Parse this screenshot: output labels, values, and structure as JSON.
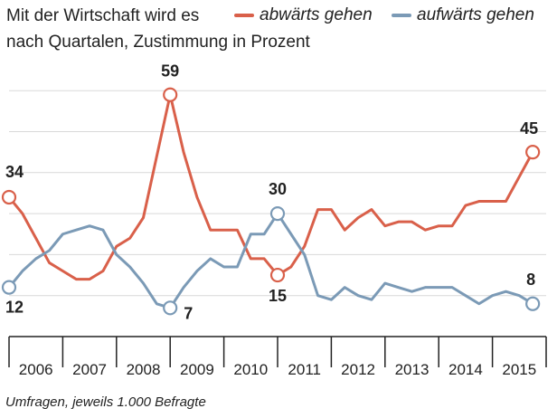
{
  "header": {
    "title_line1": "Mit der Wirtschaft wird es",
    "title_line2": "nach Quartalen, Zustimmung in Prozent"
  },
  "footer": {
    "note": "Umfragen, jeweils 1.000 Befragte"
  },
  "colors": {
    "down": "#d9604a",
    "up": "#7b9ab6",
    "grid": "#d9d9d9",
    "axis": "#222222"
  },
  "chart_data": {
    "type": "line",
    "title": "Mit der Wirtschaft wird es",
    "subtitle": "nach Quartalen, Zustimmung in Prozent",
    "xlabel": "",
    "ylabel": "",
    "ylim": [
      0,
      70
    ],
    "xlim": [
      2006.0,
      2016.0
    ],
    "x_tick_labels": [
      "2006",
      "2007",
      "2008",
      "2009",
      "2010",
      "2011",
      "2012",
      "2013",
      "2014",
      "2015"
    ],
    "grid": true,
    "legend": "top",
    "series": [
      {
        "name": "abwärts gehen",
        "color": "#d9604a",
        "x": [
          2006.0,
          2006.25,
          2006.5,
          2006.75,
          2007.0,
          2007.25,
          2007.5,
          2007.75,
          2008.0,
          2008.25,
          2008.5,
          2008.75,
          2009.0,
          2009.25,
          2009.5,
          2009.75,
          2010.0,
          2010.25,
          2010.5,
          2010.75,
          2011.0,
          2011.25,
          2011.5,
          2011.75,
          2012.0,
          2012.25,
          2012.5,
          2012.75,
          2013.0,
          2013.25,
          2013.5,
          2013.75,
          2014.0,
          2014.25,
          2014.5,
          2014.75,
          2015.0,
          2015.25,
          2015.5,
          2015.75
        ],
        "values": [
          34,
          30,
          24,
          18,
          16,
          14,
          14,
          16,
          22,
          24,
          29,
          44,
          59,
          45,
          34,
          26,
          26,
          26,
          19,
          19,
          15,
          17,
          22,
          31,
          31,
          26,
          29,
          31,
          27,
          28,
          28,
          26,
          27,
          27,
          32,
          33,
          33,
          33,
          39,
          45
        ]
      },
      {
        "name": "aufwärts gehen",
        "color": "#7b9ab6",
        "x": [
          2006.0,
          2006.25,
          2006.5,
          2006.75,
          2007.0,
          2007.25,
          2007.5,
          2007.75,
          2008.0,
          2008.25,
          2008.5,
          2008.75,
          2009.0,
          2009.25,
          2009.5,
          2009.75,
          2010.0,
          2010.25,
          2010.5,
          2010.75,
          2011.0,
          2011.25,
          2011.5,
          2011.75,
          2012.0,
          2012.25,
          2012.5,
          2012.75,
          2013.0,
          2013.25,
          2013.5,
          2013.75,
          2014.0,
          2014.25,
          2014.5,
          2014.75,
          2015.0,
          2015.25,
          2015.5,
          2015.75
        ],
        "values": [
          12,
          16,
          19,
          21,
          25,
          26,
          27,
          26,
          20,
          17,
          13,
          8,
          7,
          12,
          16,
          19,
          17,
          17,
          25,
          25,
          30,
          25,
          20,
          10,
          9,
          12,
          10,
          9,
          13,
          12,
          11,
          12,
          12,
          12,
          10,
          8,
          10,
          11,
          10,
          8
        ]
      }
    ],
    "annotations": [
      {
        "series": 0,
        "index": 0,
        "label": "34",
        "circle": true
      },
      {
        "series": 0,
        "index": 12,
        "label": "59",
        "circle": true
      },
      {
        "series": 0,
        "index": 20,
        "label": "15",
        "circle": true
      },
      {
        "series": 0,
        "index": 39,
        "label": "45",
        "circle": true
      },
      {
        "series": 1,
        "index": 0,
        "label": "12",
        "circle": true
      },
      {
        "series": 1,
        "index": 12,
        "label": "7",
        "circle": true
      },
      {
        "series": 1,
        "index": 20,
        "label": "30",
        "circle": true
      },
      {
        "series": 1,
        "index": 39,
        "label": "8",
        "circle": true
      }
    ],
    "source_note": "Umfragen, jeweils 1.000 Befragte"
  }
}
